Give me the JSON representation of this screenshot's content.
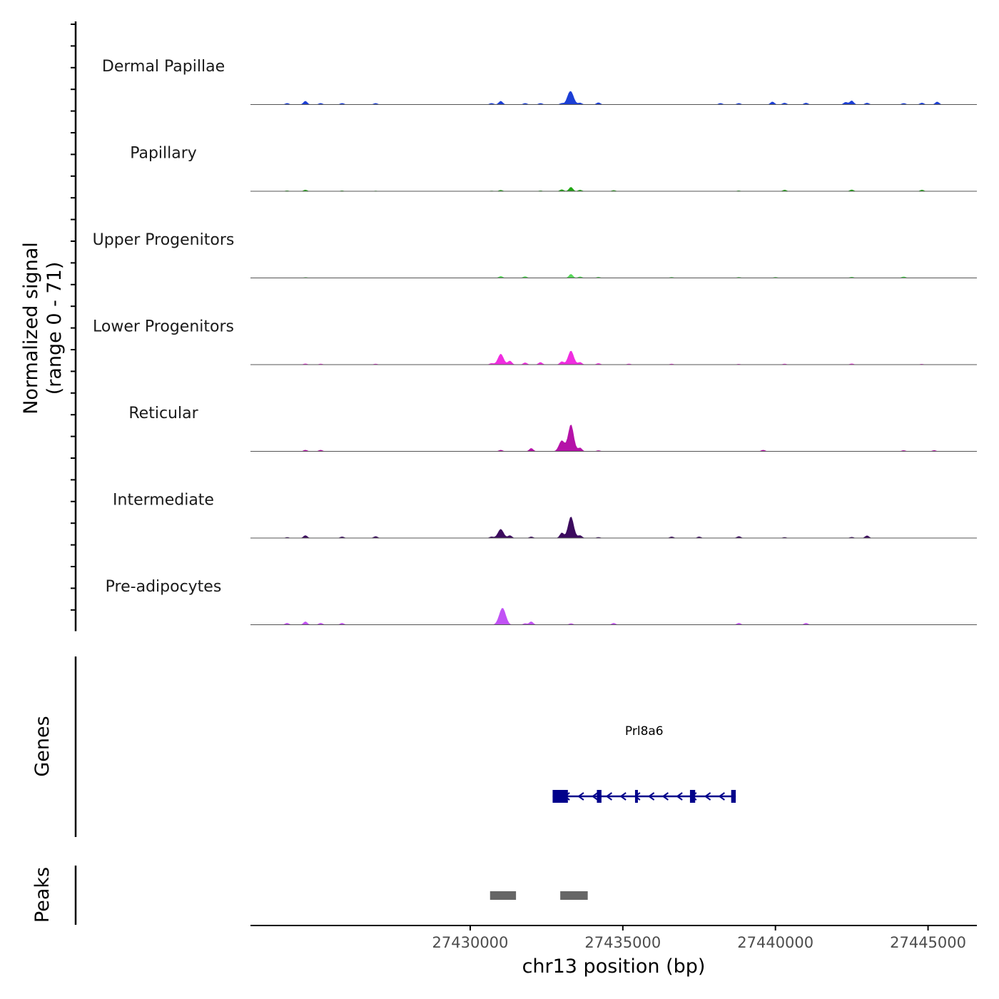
{
  "chart_data": {
    "type": "area",
    "chromosome": "chr13",
    "xlabel": "chr13 position (bp)",
    "ylabel_line1": "Normalized signal",
    "ylabel_line2": "(range 0 - 71)",
    "ylim": [
      0,
      71
    ],
    "xlim": [
      27422800,
      27446600
    ],
    "x_ticks": [
      27430000,
      27435000,
      27440000,
      27445000
    ],
    "x_tick_labels": [
      "27430000",
      "27435000",
      "27440000",
      "27445000"
    ],
    "tracks": [
      {
        "name": "Dermal Papillae",
        "color": "#1c3fd6",
        "peaks": [
          [
            27424000,
            8
          ],
          [
            27424600,
            20
          ],
          [
            27425100,
            8
          ],
          [
            27425800,
            8
          ],
          [
            27426900,
            8
          ],
          [
            27430700,
            8
          ],
          [
            27431000,
            20
          ],
          [
            27431800,
            8
          ],
          [
            27432300,
            8
          ],
          [
            27433000,
            8
          ],
          [
            27433200,
            15
          ],
          [
            27433300,
            70
          ],
          [
            27433600,
            10
          ],
          [
            27434200,
            12
          ],
          [
            27438200,
            8
          ],
          [
            27438800,
            8
          ],
          [
            27439900,
            16
          ],
          [
            27440300,
            10
          ],
          [
            27441000,
            10
          ],
          [
            27442300,
            14
          ],
          [
            27442500,
            22
          ],
          [
            27443000,
            10
          ],
          [
            27444200,
            8
          ],
          [
            27444800,
            10
          ],
          [
            27445300,
            16
          ]
        ]
      },
      {
        "name": "Papillary",
        "color": "#1fa512",
        "peaks": [
          [
            27424000,
            4
          ],
          [
            27424600,
            8
          ],
          [
            27425800,
            4
          ],
          [
            27426900,
            3
          ],
          [
            27430700,
            3
          ],
          [
            27431000,
            7
          ],
          [
            27432300,
            4
          ],
          [
            27433000,
            10
          ],
          [
            27433300,
            24
          ],
          [
            27433600,
            8
          ],
          [
            27434700,
            6
          ],
          [
            27438800,
            4
          ],
          [
            27440300,
            8
          ],
          [
            27442500,
            9
          ],
          [
            27444800,
            8
          ]
        ]
      },
      {
        "name": "Upper Progenitors",
        "color": "#58d85a",
        "peaks": [
          [
            27424600,
            4
          ],
          [
            27431000,
            10
          ],
          [
            27431800,
            9
          ],
          [
            27433300,
            22
          ],
          [
            27433600,
            8
          ],
          [
            27434200,
            6
          ],
          [
            27436600,
            5
          ],
          [
            27438800,
            5
          ],
          [
            27440000,
            5
          ],
          [
            27442500,
            6
          ],
          [
            27444200,
            8
          ]
        ]
      },
      {
        "name": "Lower Progenitors",
        "color": "#f02de0",
        "peaks": [
          [
            27424600,
            6
          ],
          [
            27425100,
            5
          ],
          [
            27426900,
            5
          ],
          [
            27430700,
            8
          ],
          [
            27431000,
            60
          ],
          [
            27431300,
            22
          ],
          [
            27431800,
            12
          ],
          [
            27432300,
            14
          ],
          [
            27433000,
            18
          ],
          [
            27433300,
            78
          ],
          [
            27433600,
            14
          ],
          [
            27434200,
            8
          ],
          [
            27435200,
            5
          ],
          [
            27436600,
            5
          ],
          [
            27438800,
            4
          ],
          [
            27440300,
            5
          ],
          [
            27442500,
            6
          ],
          [
            27444800,
            4
          ]
        ]
      },
      {
        "name": "Reticular",
        "color": "#b512a8",
        "peaks": [
          [
            27424600,
            8
          ],
          [
            27425100,
            8
          ],
          [
            27431000,
            8
          ],
          [
            27432000,
            18
          ],
          [
            27433000,
            60
          ],
          [
            27433300,
            150
          ],
          [
            27433600,
            20
          ],
          [
            27434200,
            5
          ],
          [
            27439600,
            8
          ],
          [
            27444200,
            6
          ],
          [
            27445200,
            6
          ]
        ]
      },
      {
        "name": "Intermediate",
        "color": "#3c0b5e",
        "peaks": [
          [
            27424000,
            5
          ],
          [
            27424600,
            15
          ],
          [
            27425800,
            8
          ],
          [
            27426900,
            10
          ],
          [
            27430700,
            8
          ],
          [
            27431000,
            50
          ],
          [
            27431300,
            15
          ],
          [
            27432000,
            8
          ],
          [
            27433000,
            30
          ],
          [
            27433300,
            120
          ],
          [
            27433600,
            15
          ],
          [
            27434200,
            5
          ],
          [
            27436600,
            8
          ],
          [
            27437500,
            8
          ],
          [
            27438800,
            10
          ],
          [
            27440300,
            5
          ],
          [
            27442500,
            6
          ],
          [
            27443000,
            14
          ]
        ]
      },
      {
        "name": "Pre-adipocytes",
        "color": "#c152f5",
        "peaks": [
          [
            27424000,
            10
          ],
          [
            27424600,
            18
          ],
          [
            27425100,
            10
          ],
          [
            27425800,
            10
          ],
          [
            27431000,
            48
          ],
          [
            27431100,
            60
          ],
          [
            27431800,
            8
          ],
          [
            27432000,
            18
          ],
          [
            27433300,
            8
          ],
          [
            27434700,
            10
          ],
          [
            27438800,
            10
          ],
          [
            27441000,
            10
          ]
        ]
      }
    ],
    "gene_track_label": "Genes",
    "genes": [
      {
        "name": "Prl8a6",
        "strand": "-",
        "start": 27432700,
        "end": 27438700,
        "exons": [
          [
            27432700,
            27433200
          ],
          [
            27434150,
            27434300
          ],
          [
            27435400,
            27435470
          ],
          [
            27437200,
            27437370
          ],
          [
            27438550,
            27438700
          ]
        ]
      }
    ],
    "peak_track_label": "Peaks",
    "called_peaks": [
      [
        27430650,
        27431500
      ],
      [
        27432950,
        27433850
      ]
    ]
  }
}
